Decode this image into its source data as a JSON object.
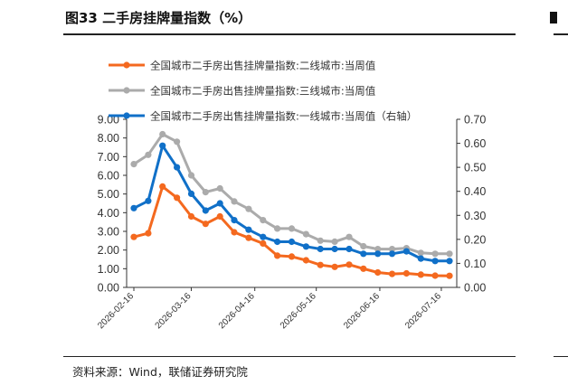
{
  "header": {
    "title": "图33 二手房挂牌量指数（%）"
  },
  "footer": {
    "source": "资料来源：Wind，联储证券研究院"
  },
  "chart_data": {
    "type": "line",
    "x": [
      "2026-02-16",
      "2026-02-23",
      "2026-03-02",
      "2026-03-09",
      "2026-03-16",
      "2026-03-23",
      "2026-03-30",
      "2026-04-06",
      "2026-04-13",
      "2026-04-20",
      "2026-04-27",
      "2026-05-04",
      "2026-05-11",
      "2026-05-18",
      "2026-05-25",
      "2026-06-01",
      "2026-06-08",
      "2026-06-15",
      "2026-06-22",
      "2026-06-29",
      "2026-07-06",
      "2026-07-13",
      "2026-07-20"
    ],
    "x_tick_labels": [
      "2026-02-16",
      "2026-03-16",
      "2026-04-16",
      "2026-05-16",
      "2026-06-16",
      "2026-07-16"
    ],
    "x_tick_dates": [
      "2026-02-16",
      "2026-03-16",
      "2026-04-16",
      "2026-05-16",
      "2026-06-16",
      "2026-07-16"
    ],
    "y_left": {
      "min": 0,
      "max": 9,
      "step": 1,
      "ticks": [
        "0.00",
        "1.00",
        "2.00",
        "3.00",
        "4.00",
        "5.00",
        "6.00",
        "7.00",
        "8.00",
        "9.00"
      ]
    },
    "y_right": {
      "min": 0,
      "max": 0.7,
      "step": 0.1,
      "ticks": [
        "0.00",
        "0.10",
        "0.20",
        "0.30",
        "0.40",
        "0.50",
        "0.60",
        "0.70"
      ]
    },
    "series": [
      {
        "name": "全国城市二手房出售挂牌量指数:二线城市:当周值",
        "axis": "left",
        "color": "#F4691F",
        "values": [
          2.7,
          2.9,
          5.4,
          4.8,
          3.8,
          3.4,
          3.8,
          2.95,
          2.65,
          2.35,
          1.7,
          1.65,
          1.45,
          1.2,
          1.1,
          1.22,
          1.0,
          0.8,
          0.72,
          0.75,
          0.68,
          0.63,
          0.62
        ]
      },
      {
        "name": "全国城市二手房出售挂牌量指数:三线城市:当周值",
        "axis": "left",
        "color": "#ABABAB",
        "values": [
          6.6,
          7.1,
          8.2,
          7.8,
          6.0,
          5.1,
          5.3,
          4.6,
          4.2,
          3.6,
          3.15,
          3.15,
          2.85,
          2.5,
          2.45,
          2.7,
          2.2,
          2.05,
          2.05,
          2.1,
          1.85,
          1.8,
          1.8
        ]
      },
      {
        "name": "全国城市二手房出售挂牌量指数:一线城市:当周值（右轴）",
        "axis": "right",
        "color": "#1070C8",
        "values": [
          0.33,
          0.36,
          0.59,
          0.5,
          0.39,
          0.32,
          0.35,
          0.28,
          0.24,
          0.21,
          0.19,
          0.19,
          0.17,
          0.16,
          0.16,
          0.16,
          0.14,
          0.14,
          0.14,
          0.15,
          0.12,
          0.11,
          0.11
        ]
      }
    ],
    "legend_position": "top-inside",
    "grid": false
  }
}
